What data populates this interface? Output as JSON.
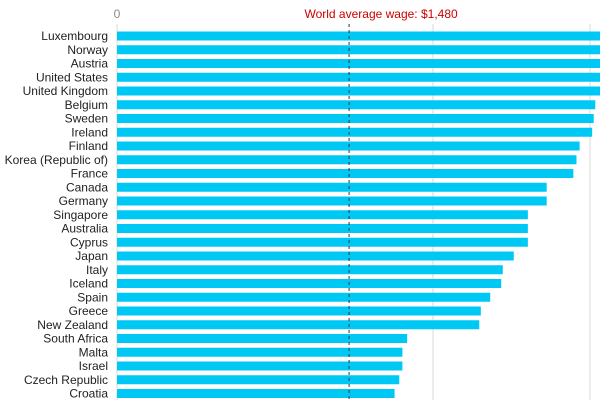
{
  "chart_data": {
    "type": "bar",
    "orientation": "horizontal",
    "x_tick_labels": [
      "0"
    ],
    "annotation": {
      "label": "World average wage: $1,480",
      "value": 1480,
      "color": "#cc0000"
    },
    "bar_color": "#00c8f5",
    "grid": true,
    "categories": [
      "Luxembourg",
      "Norway",
      "Austria",
      "United States",
      "United Kingdom",
      "Belgium",
      "Sweden",
      "Ireland",
      "Finland",
      "Korea (Republic of)",
      "France",
      "Canada",
      "Germany",
      "Singapore",
      "Australia",
      "Cyprus",
      "Japan",
      "Italy",
      "Iceland",
      "Spain",
      "Greece",
      "New Zealand",
      "South Africa",
      "Malta",
      "Israel",
      "Czech Republic",
      "Croatia"
    ],
    "values": [
      3080,
      3080,
      3080,
      3080,
      3080,
      3050,
      3040,
      3030,
      2950,
      2930,
      2910,
      2740,
      2740,
      2620,
      2620,
      2620,
      2530,
      2460,
      2450,
      2380,
      2320,
      2310,
      1850,
      1820,
      1820,
      1800,
      1770
    ],
    "xlim": [
      0,
      3080
    ]
  }
}
